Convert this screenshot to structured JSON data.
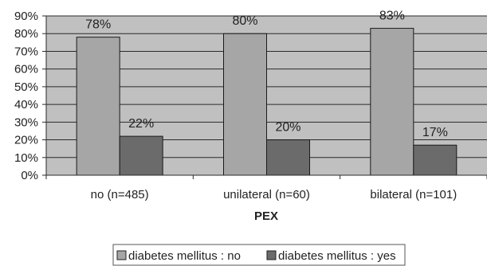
{
  "chart_data": {
    "type": "bar",
    "title": "",
    "xlabel": "PEX",
    "ylabel": "",
    "categories": [
      "no (n=485)",
      "unilateral (n=60)",
      "bilateral (n=101)"
    ],
    "series": [
      {
        "name": "diabetes mellitus : no",
        "values": [
          78,
          80,
          83
        ],
        "labels": [
          "78%",
          "80%",
          "83%"
        ],
        "color": "#a6a6a6"
      },
      {
        "name": "diabetes mellitus : yes",
        "values": [
          22,
          20,
          17
        ],
        "labels": [
          "22%",
          "20%",
          "17%"
        ],
        "color": "#6b6b6b"
      }
    ],
    "ylim": [
      0,
      90
    ],
    "yticks": [
      "0%",
      "10%",
      "20%",
      "30%",
      "40%",
      "50%",
      "60%",
      "70%",
      "80%",
      "90%"
    ],
    "grid": true,
    "legend_position": "bottom",
    "plot_background": "#c0c0c0"
  }
}
